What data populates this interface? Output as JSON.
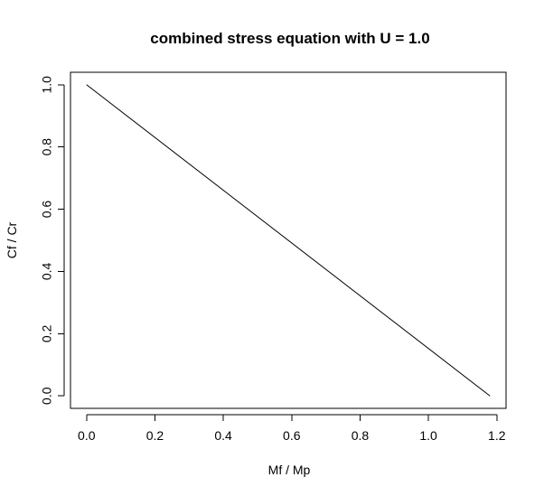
{
  "chart_data": {
    "type": "line",
    "title": "combined stress equation with U = 1.0",
    "xlabel": "Mf / Mp",
    "ylabel": "Cf / Cr",
    "x_ticks": [
      "0.0",
      "0.2",
      "0.4",
      "0.6",
      "0.8",
      "1.0",
      "1.2"
    ],
    "y_ticks": [
      "0.0",
      "0.2",
      "0.4",
      "0.6",
      "0.8",
      "1.0"
    ],
    "xlim": [
      -0.047,
      1.227
    ],
    "ylim": [
      -0.04,
      1.04
    ],
    "grid": false,
    "legend": "none",
    "series": [
      {
        "values": [
          {
            "x": 0.0,
            "y": 1.0
          },
          {
            "x": 1.18,
            "y": 0.0
          }
        ]
      }
    ]
  }
}
